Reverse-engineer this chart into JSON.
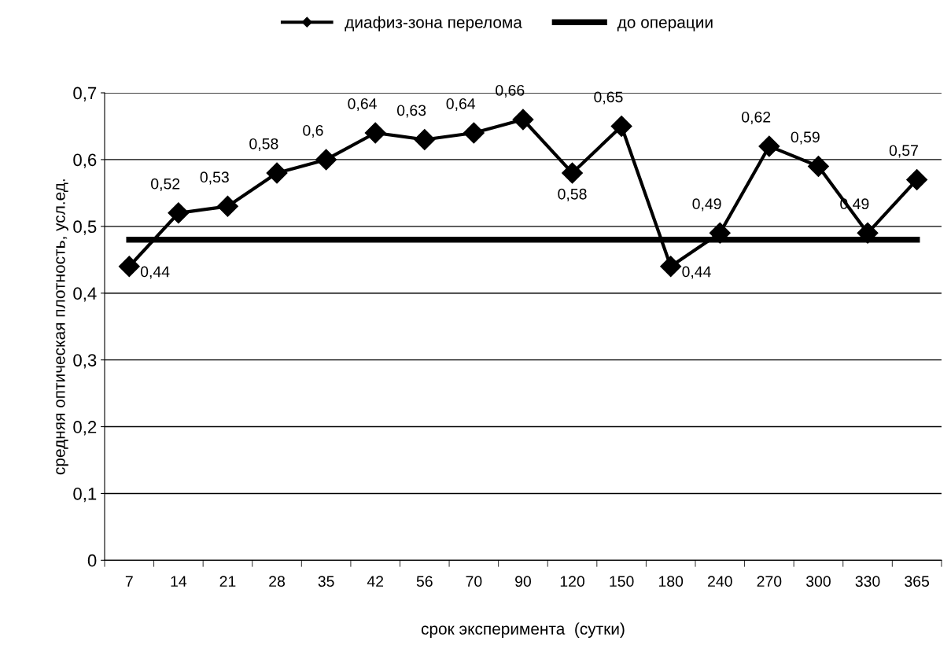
{
  "chart_data": {
    "type": "line",
    "xlabel": "срок эксперимента  (сутки)",
    "ylabel": "средняя оптическая плотность, усл.ед.",
    "categories": [
      "7",
      "14",
      "21",
      "28",
      "35",
      "42",
      "56",
      "70",
      "90",
      "120",
      "150",
      "180",
      "240",
      "270",
      "300",
      "330",
      "365"
    ],
    "series": [
      {
        "name": "диафиз-зона перелома",
        "color": "#000000",
        "marker": "diamond",
        "values": [
          0.44,
          0.52,
          0.53,
          0.58,
          0.6,
          0.64,
          0.63,
          0.64,
          0.66,
          0.58,
          0.65,
          0.44,
          0.49,
          0.62,
          0.59,
          0.49,
          0.57
        ],
        "value_labels": [
          "0,44",
          "0,52",
          "0,53",
          "0,58",
          "0,6",
          "0,64",
          "0,63",
          "0,64",
          "0,66",
          "0,58",
          "0,65",
          "0,44",
          "0,49",
          "0,62",
          "0,59",
          "0,49",
          "0,57"
        ]
      },
      {
        "name": "до операции",
        "color": "#000000",
        "marker": "none",
        "values": [
          0.48,
          0.48,
          0.48,
          0.48,
          0.48,
          0.48,
          0.48,
          0.48,
          0.48,
          0.48,
          0.48,
          0.48,
          0.48,
          0.48,
          0.48,
          0.48,
          0.48
        ]
      }
    ],
    "ylim": [
      0,
      0.7
    ],
    "yticks": [
      {
        "value": 0,
        "label": "0"
      },
      {
        "value": 0.1,
        "label": "0,1"
      },
      {
        "value": 0.2,
        "label": "0,2"
      },
      {
        "value": 0.3,
        "label": "0,3"
      },
      {
        "value": 0.4,
        "label": "0,4"
      },
      {
        "value": 0.5,
        "label": "0,5"
      },
      {
        "value": 0.6,
        "label": "0,6"
      },
      {
        "value": 0.7,
        "label": "0,7"
      }
    ],
    "grid": "y",
    "legend": "top",
    "line_style": "solid"
  }
}
